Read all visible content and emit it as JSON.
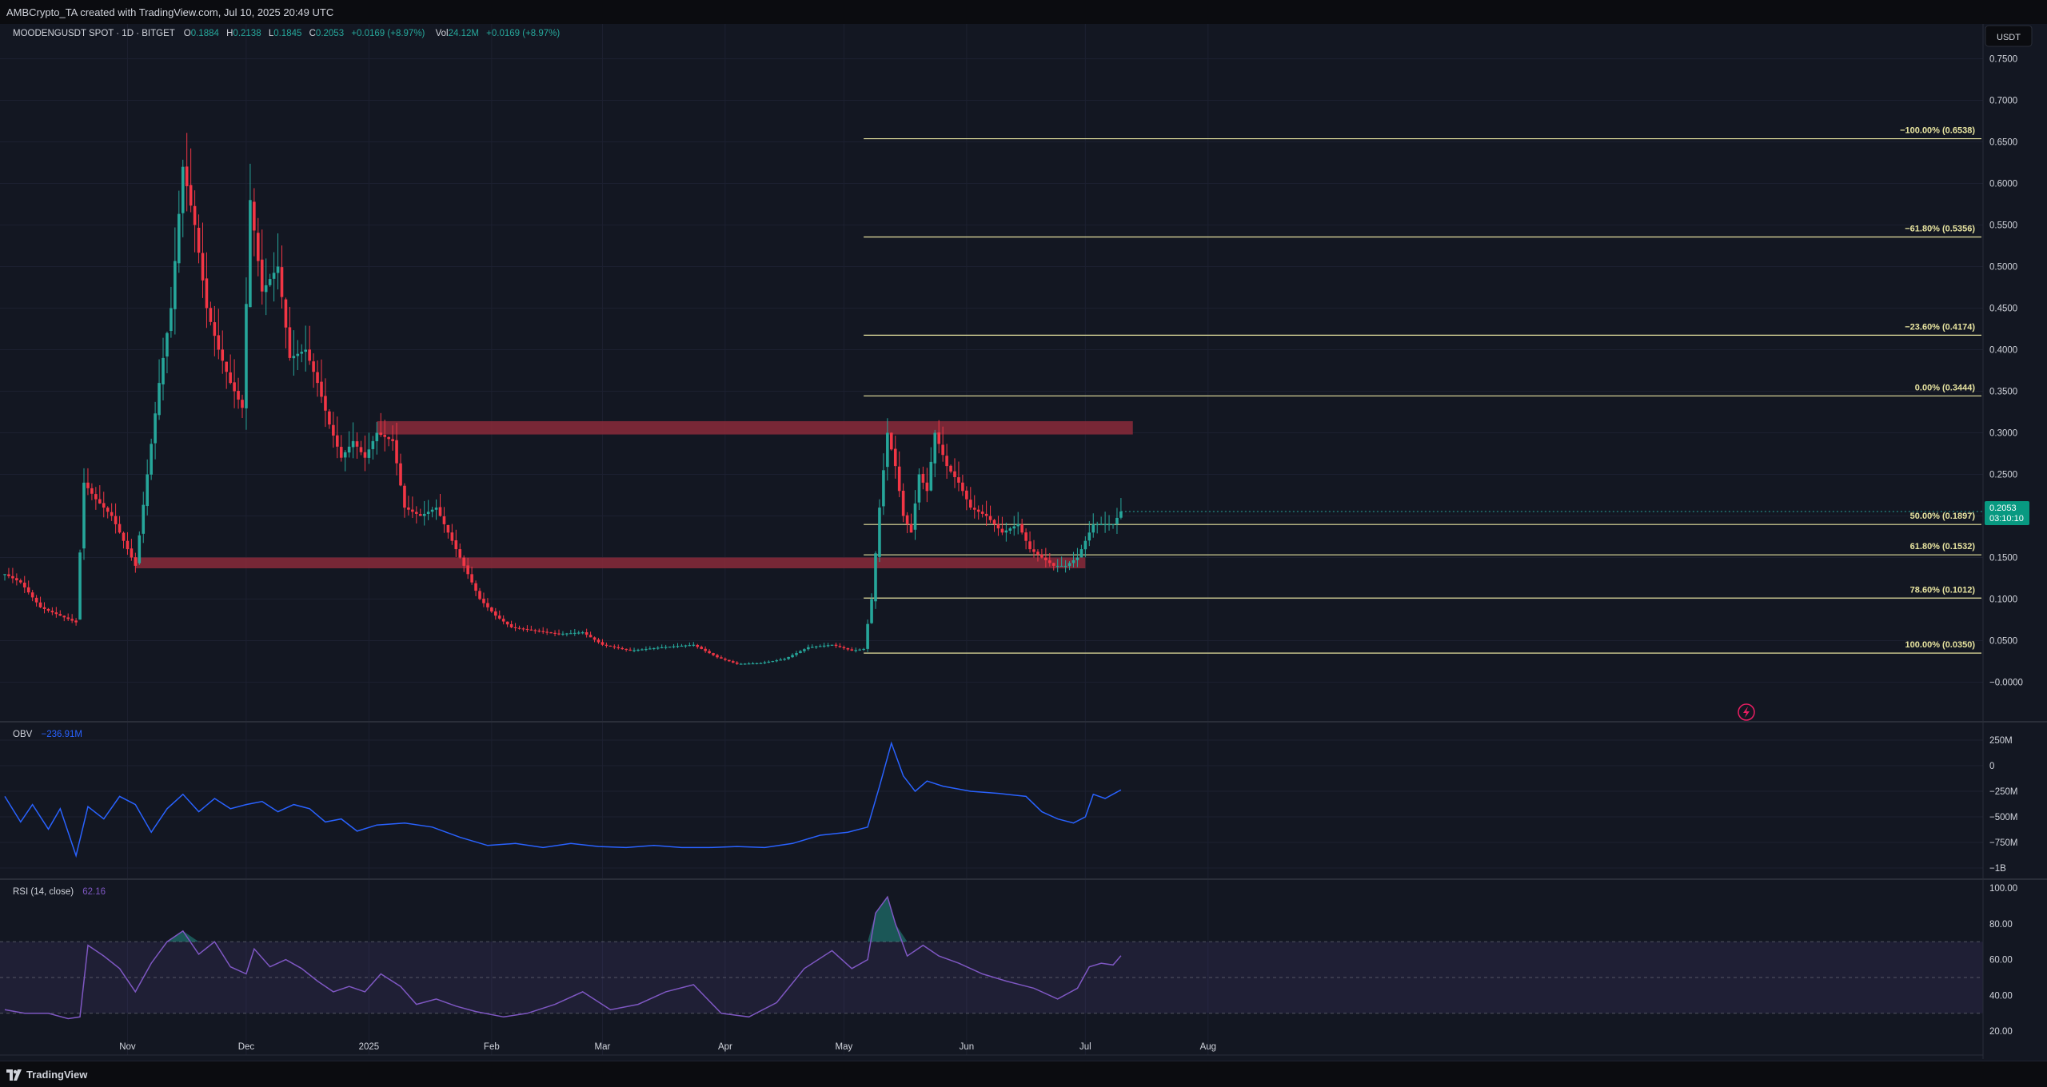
{
  "header": {
    "credit": "AMBCrypto_TA created with TradingView.com, Jul 10, 2025 20:49 UTC"
  },
  "footer": {
    "brand": "TradingView"
  },
  "legend": {
    "symbol": "MOODENGUSDT SPOT · 1D · BITGET",
    "o_label": "O",
    "o_value": "0.1884",
    "h_label": "H",
    "h_value": "0.2138",
    "l_label": "L",
    "l_value": "0.1845",
    "c_label": "C",
    "c_value": "0.2053",
    "change": "+0.0169 (+8.97%)",
    "vol_label": "Vol",
    "vol_value": "24.12M",
    "vol_change": "+0.0169 (+8.97%)"
  },
  "currency_button": "USDT",
  "price_tag": {
    "price": "0.2053",
    "countdown": "03:10:10"
  },
  "colors": {
    "up": "#26a69a",
    "down": "#f23645",
    "fib": "#e8e4a0",
    "zone": "#8b2a3a",
    "obv": "#2962ff",
    "rsi": "#7e57c2",
    "bg": "#131722"
  },
  "chart_data": [
    {
      "type": "candlestick",
      "title": "MOODENGUSDT SPOT · 1D · BITGET",
      "x_ticks": [
        "Nov",
        "Dec",
        "2025",
        "Feb",
        "Mar",
        "Apr",
        "May",
        "Jun",
        "Jul",
        "Aug"
      ],
      "y_ticks": [
        "0.7500",
        "0.7000",
        "0.6500",
        "0.6000",
        "0.5500",
        "0.5000",
        "0.4500",
        "0.4000",
        "0.3500",
        "0.3000",
        "0.2500",
        "0.2000",
        "0.1500",
        "0.1000",
        "0.0500",
        "−0.0000"
      ],
      "ylim": [
        -0.01,
        0.76
      ],
      "close_series": [
        [
          "2024-10-01",
          0.13
        ],
        [
          "2024-10-05",
          0.12
        ],
        [
          "2024-10-10",
          0.09
        ],
        [
          "2024-10-15",
          0.08
        ],
        [
          "2024-10-19",
          0.072
        ],
        [
          "2024-10-21",
          0.24
        ],
        [
          "2024-10-24",
          0.22
        ],
        [
          "2024-10-28",
          0.2
        ],
        [
          "2024-10-31",
          0.17
        ],
        [
          "2024-11-03",
          0.14
        ],
        [
          "2024-11-06",
          0.25
        ],
        [
          "2024-11-09",
          0.36
        ],
        [
          "2024-11-12",
          0.45
        ],
        [
          "2024-11-15",
          0.62
        ],
        [
          "2024-11-18",
          0.55
        ],
        [
          "2024-11-21",
          0.45
        ],
        [
          "2024-11-24",
          0.4
        ],
        [
          "2024-11-27",
          0.36
        ],
        [
          "2024-11-30",
          0.33
        ],
        [
          "2024-12-02",
          0.58
        ],
        [
          "2024-12-05",
          0.47
        ],
        [
          "2024-12-09",
          0.5
        ],
        [
          "2024-12-12",
          0.39
        ],
        [
          "2024-12-16",
          0.4
        ],
        [
          "2024-12-19",
          0.36
        ],
        [
          "2024-12-22",
          0.31
        ],
        [
          "2024-12-25",
          0.27
        ],
        [
          "2024-12-28",
          0.29
        ],
        [
          "2024-12-31",
          0.27
        ],
        [
          "2025-01-03",
          0.3
        ],
        [
          "2025-01-07",
          0.29
        ],
        [
          "2025-01-10",
          0.21
        ],
        [
          "2025-01-14",
          0.2
        ],
        [
          "2025-01-18",
          0.21
        ],
        [
          "2025-01-21",
          0.18
        ],
        [
          "2025-01-25",
          0.14
        ],
        [
          "2025-01-29",
          0.1
        ],
        [
          "2025-02-02",
          0.08
        ],
        [
          "2025-02-06",
          0.066
        ],
        [
          "2025-02-12",
          0.062
        ],
        [
          "2025-02-18",
          0.058
        ],
        [
          "2025-02-24",
          0.06
        ],
        [
          "2025-03-01",
          0.045
        ],
        [
          "2025-03-08",
          0.038
        ],
        [
          "2025-03-16",
          0.042
        ],
        [
          "2025-03-24",
          0.045
        ],
        [
          "2025-03-30",
          0.03
        ],
        [
          "2025-04-04",
          0.022
        ],
        [
          "2025-04-10",
          0.023
        ],
        [
          "2025-04-16",
          0.028
        ],
        [
          "2025-04-22",
          0.042
        ],
        [
          "2025-04-28",
          0.045
        ],
        [
          "2025-05-03",
          0.038
        ],
        [
          "2025-05-06",
          0.04
        ],
        [
          "2025-05-08",
          0.1
        ],
        [
          "2025-05-10",
          0.21
        ],
        [
          "2025-05-12",
          0.3
        ],
        [
          "2025-05-14",
          0.26
        ],
        [
          "2025-05-16",
          0.2
        ],
        [
          "2025-05-18",
          0.18
        ],
        [
          "2025-05-20",
          0.25
        ],
        [
          "2025-05-22",
          0.23
        ],
        [
          "2025-05-24",
          0.3
        ],
        [
          "2025-05-27",
          0.26
        ],
        [
          "2025-05-30",
          0.24
        ],
        [
          "2025-06-02",
          0.21
        ],
        [
          "2025-06-06",
          0.2
        ],
        [
          "2025-06-10",
          0.18
        ],
        [
          "2025-06-14",
          0.19
        ],
        [
          "2025-06-17",
          0.16
        ],
        [
          "2025-06-20",
          0.15
        ],
        [
          "2025-06-23",
          0.14
        ],
        [
          "2025-06-26",
          0.14
        ],
        [
          "2025-06-29",
          0.15
        ],
        [
          "2025-07-01",
          0.17
        ],
        [
          "2025-07-03",
          0.19
        ],
        [
          "2025-07-06",
          0.19
        ],
        [
          "2025-07-08",
          0.19
        ],
        [
          "2025-07-10",
          0.2053
        ]
      ],
      "resistance_zone": {
        "from_date": "2025-01-03",
        "to_date": "2025-07-13",
        "low": 0.298,
        "high": 0.314
      },
      "support_zone": {
        "from_date": "2024-11-03",
        "to_date": "2025-07-01",
        "low": 0.137,
        "high": 0.15
      },
      "fib_levels": [
        {
          "label": "−100.00% (0.6538)",
          "value": 0.6538
        },
        {
          "label": "−61.80% (0.5356)",
          "value": 0.5356
        },
        {
          "label": "−23.60% (0.4174)",
          "value": 0.4174
        },
        {
          "label": "0.00% (0.3444)",
          "value": 0.3444
        },
        {
          "label": "50.00% (0.1897)",
          "value": 0.1897
        },
        {
          "label": "61.80% (0.1532)",
          "value": 0.1532
        },
        {
          "label": "78.60% (0.1012)",
          "value": 0.1012
        },
        {
          "label": "100.00% (0.0350)",
          "value": 0.035
        }
      ],
      "fib_start_date": "2025-05-06"
    },
    {
      "type": "line",
      "title": "OBV",
      "value_label": "−236.91M",
      "y_ticks": [
        "250M",
        "0",
        "−250M",
        "−500M",
        "−750M",
        "−1B"
      ],
      "ylim": [
        -1000,
        250
      ],
      "series": [
        [
          "2024-10-01",
          -300
        ],
        [
          "2024-10-05",
          -550
        ],
        [
          "2024-10-08",
          -380
        ],
        [
          "2024-10-12",
          -620
        ],
        [
          "2024-10-15",
          -420
        ],
        [
          "2024-10-19",
          -880
        ],
        [
          "2024-10-22",
          -400
        ],
        [
          "2024-10-26",
          -520
        ],
        [
          "2024-10-30",
          -300
        ],
        [
          "2024-11-03",
          -380
        ],
        [
          "2024-11-07",
          -650
        ],
        [
          "2024-11-11",
          -420
        ],
        [
          "2024-11-15",
          -280
        ],
        [
          "2024-11-19",
          -450
        ],
        [
          "2024-11-23",
          -320
        ],
        [
          "2024-11-27",
          -420
        ],
        [
          "2024-12-01",
          -380
        ],
        [
          "2024-12-05",
          -350
        ],
        [
          "2024-12-09",
          -450
        ],
        [
          "2024-12-13",
          -380
        ],
        [
          "2024-12-17",
          -420
        ],
        [
          "2024-12-21",
          -550
        ],
        [
          "2024-12-25",
          -520
        ],
        [
          "2024-12-29",
          -640
        ],
        [
          "2025-01-03",
          -580
        ],
        [
          "2025-01-10",
          -560
        ],
        [
          "2025-01-17",
          -600
        ],
        [
          "2025-01-24",
          -700
        ],
        [
          "2025-01-31",
          -780
        ],
        [
          "2025-02-07",
          -760
        ],
        [
          "2025-02-14",
          -800
        ],
        [
          "2025-02-21",
          -760
        ],
        [
          "2025-02-28",
          -790
        ],
        [
          "2025-03-07",
          -800
        ],
        [
          "2025-03-14",
          -780
        ],
        [
          "2025-03-21",
          -800
        ],
        [
          "2025-03-28",
          -800
        ],
        [
          "2025-04-04",
          -790
        ],
        [
          "2025-04-11",
          -800
        ],
        [
          "2025-04-18",
          -760
        ],
        [
          "2025-04-25",
          -680
        ],
        [
          "2025-05-02",
          -650
        ],
        [
          "2025-05-07",
          -600
        ],
        [
          "2025-05-10",
          -200
        ],
        [
          "2025-05-13",
          220
        ],
        [
          "2025-05-16",
          -100
        ],
        [
          "2025-05-19",
          -250
        ],
        [
          "2025-05-22",
          -150
        ],
        [
          "2025-05-26",
          -200
        ],
        [
          "2025-06-02",
          -250
        ],
        [
          "2025-06-09",
          -270
        ],
        [
          "2025-06-16",
          -300
        ],
        [
          "2025-06-20",
          -450
        ],
        [
          "2025-06-24",
          -520
        ],
        [
          "2025-06-28",
          -560
        ],
        [
          "2025-07-01",
          -500
        ],
        [
          "2025-07-03",
          -280
        ],
        [
          "2025-07-06",
          -320
        ],
        [
          "2025-07-10",
          -237
        ]
      ]
    },
    {
      "type": "line",
      "title": "RSI (14, close)",
      "value_label": "62.16",
      "y_ticks": [
        "100.00",
        "80.00",
        "60.00",
        "40.00",
        "20.00"
      ],
      "ylim": [
        20,
        100
      ],
      "band": [
        30,
        70
      ],
      "middle": 50,
      "series": [
        [
          "2024-10-01",
          32
        ],
        [
          "2024-10-06",
          30
        ],
        [
          "2024-10-12",
          30
        ],
        [
          "2024-10-17",
          27
        ],
        [
          "2024-10-20",
          28
        ],
        [
          "2024-10-22",
          68
        ],
        [
          "2024-10-26",
          62
        ],
        [
          "2024-10-30",
          55
        ],
        [
          "2024-11-03",
          42
        ],
        [
          "2024-11-07",
          58
        ],
        [
          "2024-11-11",
          70
        ],
        [
          "2024-11-15",
          76
        ],
        [
          "2024-11-19",
          63
        ],
        [
          "2024-11-23",
          70
        ],
        [
          "2024-11-27",
          56
        ],
        [
          "2024-12-01",
          52
        ],
        [
          "2024-12-03",
          66
        ],
        [
          "2024-12-07",
          56
        ],
        [
          "2024-12-11",
          60
        ],
        [
          "2024-12-15",
          55
        ],
        [
          "2024-12-19",
          48
        ],
        [
          "2024-12-23",
          42
        ],
        [
          "2024-12-27",
          45
        ],
        [
          "2024-12-31",
          42
        ],
        [
          "2025-01-04",
          52
        ],
        [
          "2025-01-09",
          45
        ],
        [
          "2025-01-13",
          35
        ],
        [
          "2025-01-18",
          38
        ],
        [
          "2025-01-23",
          34
        ],
        [
          "2025-01-28",
          31
        ],
        [
          "2025-02-04",
          28
        ],
        [
          "2025-02-10",
          30
        ],
        [
          "2025-02-17",
          35
        ],
        [
          "2025-02-24",
          42
        ],
        [
          "2025-03-03",
          32
        ],
        [
          "2025-03-10",
          35
        ],
        [
          "2025-03-17",
          42
        ],
        [
          "2025-03-24",
          46
        ],
        [
          "2025-03-31",
          30
        ],
        [
          "2025-04-07",
          28
        ],
        [
          "2025-04-14",
          36
        ],
        [
          "2025-04-21",
          55
        ],
        [
          "2025-04-28",
          65
        ],
        [
          "2025-05-03",
          55
        ],
        [
          "2025-05-07",
          60
        ],
        [
          "2025-05-09",
          86
        ],
        [
          "2025-05-12",
          95
        ],
        [
          "2025-05-14",
          80
        ],
        [
          "2025-05-17",
          62
        ],
        [
          "2025-05-21",
          68
        ],
        [
          "2025-05-25",
          62
        ],
        [
          "2025-05-30",
          58
        ],
        [
          "2025-06-05",
          52
        ],
        [
          "2025-06-11",
          48
        ],
        [
          "2025-06-18",
          44
        ],
        [
          "2025-06-24",
          38
        ],
        [
          "2025-06-29",
          44
        ],
        [
          "2025-07-02",
          56
        ],
        [
          "2025-07-05",
          58
        ],
        [
          "2025-07-08",
          57
        ],
        [
          "2025-07-10",
          62.16
        ]
      ]
    }
  ]
}
